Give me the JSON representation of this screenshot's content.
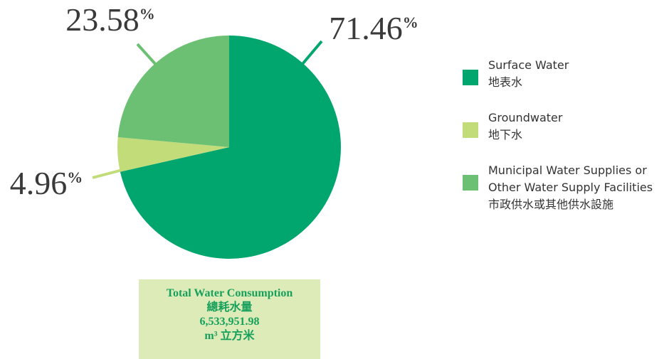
{
  "chart_data": {
    "type": "pie",
    "categories": [
      "Surface Water",
      "Groundwater",
      "Municipal Water Supplies or Other Water Supply Facilities"
    ],
    "categories_zh": [
      "地表水",
      "地下水",
      "市政供水或其他供水設施"
    ],
    "values": [
      71.46,
      4.96,
      23.58
    ],
    "value_labels": [
      "71.46%",
      "4.96%",
      "23.58%"
    ],
    "colors": [
      "#00a66e",
      "#c2dc7a",
      "#6cc073"
    ],
    "total": {
      "label": "Total Water Consumption",
      "label_zh": "總耗水量",
      "value": "6,533,951.98",
      "unit": "m³ 立方米"
    }
  }
}
